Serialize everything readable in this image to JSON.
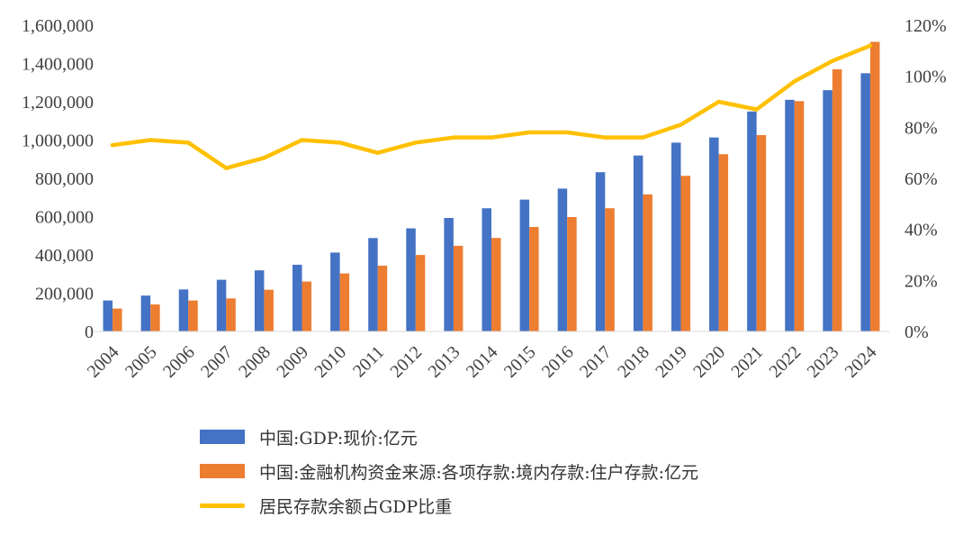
{
  "chart_data": {
    "type": "bar",
    "categories": [
      "2004",
      "2005",
      "2006",
      "2007",
      "2008",
      "2009",
      "2010",
      "2011",
      "2012",
      "2013",
      "2014",
      "2015",
      "2016",
      "2017",
      "2018",
      "2019",
      "2020",
      "2021",
      "2022",
      "2023",
      "2024"
    ],
    "series": [
      {
        "name": "中国:GDP:现价:亿元",
        "type": "bar",
        "axis": "left",
        "color": "#4472C4",
        "values": [
          161840,
          187319,
          219438,
          270092,
          319245,
          348518,
          412119,
          487940,
          538580,
          592963,
          643563,
          688858,
          746395,
          832036,
          919281,
          986515,
          1013567,
          1149237,
          1210207,
          1260582,
          1349084
        ]
      },
      {
        "name": "中国:金融机构资金来源:各项存款:境内存款:住户存款:亿元",
        "type": "bar",
        "axis": "left",
        "color": "#ED7D31",
        "values": [
          119555,
          141051,
          161587,
          172534,
          217885,
          260772,
          303302,
          343636,
          399551,
          447602,
          488534,
          546078,
          597751,
          643768,
          716038,
          813017,
          925986,
          1026000,
          1203387,
          1369895,
          1513000
        ]
      },
      {
        "name": "居民存款余额占GDP比重",
        "type": "line",
        "axis": "right",
        "color": "#FFC000",
        "values": [
          0.73,
          0.75,
          0.74,
          0.64,
          0.68,
          0.75,
          0.74,
          0.7,
          0.74,
          0.76,
          0.76,
          0.78,
          0.78,
          0.76,
          0.76,
          0.81,
          0.9,
          0.87,
          0.98,
          1.06,
          1.12
        ]
      }
    ],
    "ylim": [
      0,
      1600000
    ],
    "y2lim": [
      0,
      1.2
    ],
    "y_ticks": [
      "0",
      "200,000",
      "400,000",
      "600,000",
      "800,000",
      "1,000,000",
      "1,200,000",
      "1,400,000",
      "1,600,000"
    ],
    "y2_ticks": [
      "0%",
      "20%",
      "40%",
      "60%",
      "80%",
      "100%",
      "120%"
    ],
    "grid": false,
    "legend_position": "bottom-left"
  }
}
